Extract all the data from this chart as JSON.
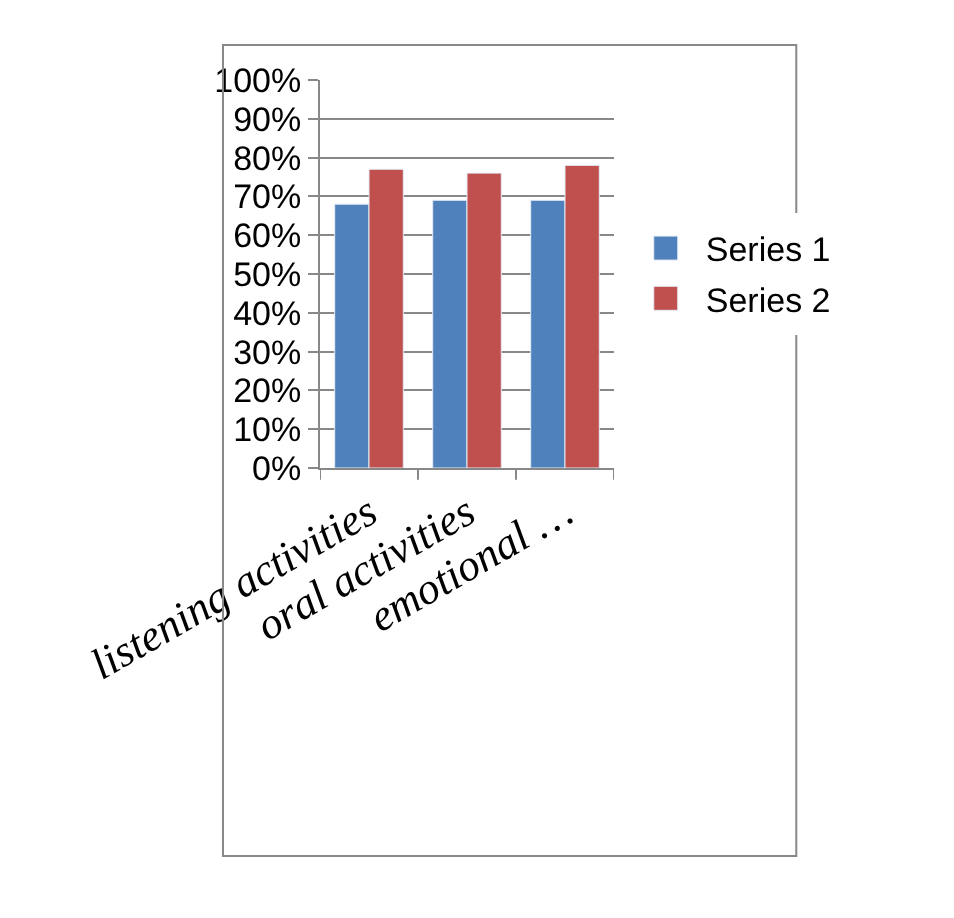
{
  "chart_data": {
    "type": "bar",
    "categories": [
      "listening activities",
      "oral activities",
      "emotional …"
    ],
    "series": [
      {
        "name": "Series 1",
        "color": "#4f81bd",
        "values": [
          68,
          69,
          69
        ]
      },
      {
        "name": "Series 2",
        "color": "#c0504d",
        "values": [
          77,
          76,
          78
        ]
      }
    ],
    "ylim": [
      0,
      100
    ],
    "yticks": [
      {
        "value": 0,
        "label": "0%"
      },
      {
        "value": 10,
        "label": "10%"
      },
      {
        "value": 20,
        "label": "20%"
      },
      {
        "value": 30,
        "label": "30%"
      },
      {
        "value": 40,
        "label": "40%"
      },
      {
        "value": 50,
        "label": "50%"
      },
      {
        "value": 60,
        "label": "60%"
      },
      {
        "value": 70,
        "label": "70%"
      },
      {
        "value": 80,
        "label": "80%"
      },
      {
        "value": 90,
        "label": "90%"
      },
      {
        "value": 100,
        "label": "100%"
      }
    ],
    "grid": "y",
    "legend": "right"
  }
}
